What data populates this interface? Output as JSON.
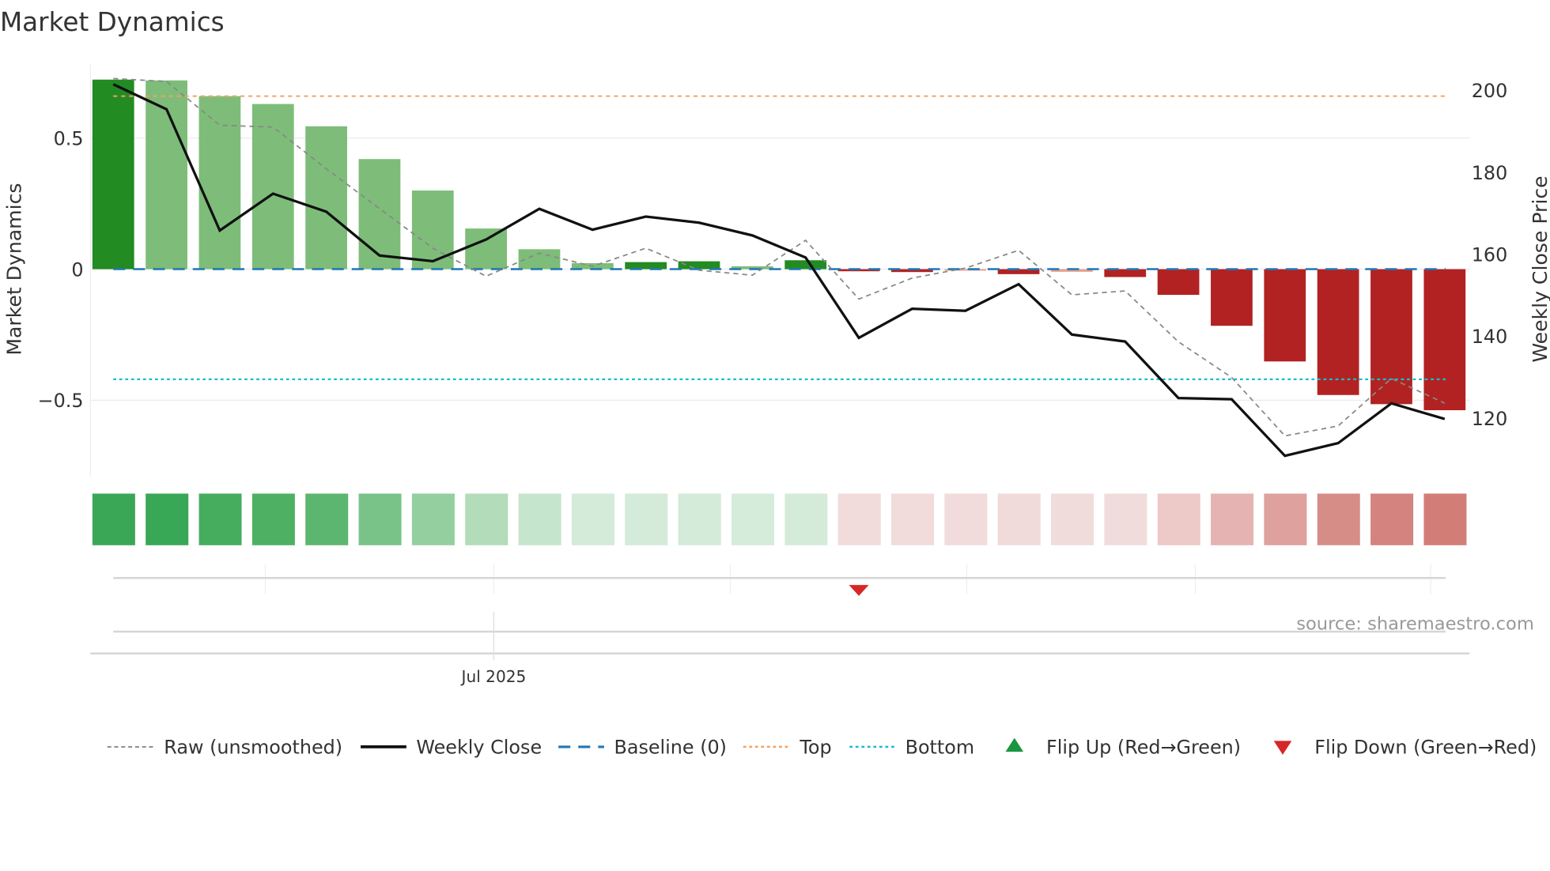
{
  "chart_data": {
    "type": "bar",
    "title": "Market Dynamics",
    "ylabel": "Market Dynamics",
    "y2label": "Weekly Close Price",
    "ylim": [
      -0.78,
      0.78
    ],
    "y2lim": [
      108,
      206
    ],
    "yticks": [
      {
        "v": 0.5,
        "label": "0.5"
      },
      {
        "v": 0,
        "label": "0"
      },
      {
        "v": -0.5,
        "label": "−0.5"
      }
    ],
    "y2ticks": [
      {
        "v": 200,
        "label": "200"
      },
      {
        "v": 180,
        "label": "180"
      },
      {
        "v": 160,
        "label": "160"
      },
      {
        "v": 140,
        "label": "140"
      },
      {
        "v": 120,
        "label": "120"
      }
    ],
    "n_weeks": 26,
    "bars": [
      0.723,
      0.72,
      0.66,
      0.63,
      0.545,
      0.42,
      0.3,
      0.155,
      0.076,
      0.023,
      0.027,
      0.03,
      0.011,
      0.034,
      -0.008,
      -0.011,
      -0.004,
      -0.019,
      -0.01,
      -0.03,
      -0.098,
      -0.216,
      -0.352,
      -0.48,
      -0.515,
      -0.538
    ],
    "bar_colors": [
      "#228b22",
      "#7dbd79",
      "#7dbd79",
      "#7dbd79",
      "#7dbd79",
      "#7dbd79",
      "#7dbd79",
      "#7dbd79",
      "#7dbd79",
      "#7dbd79",
      "#228b22",
      "#228b22",
      "#7dbd79",
      "#228b22",
      "#b22222",
      "#b22222",
      "#e8a08c",
      "#b22222",
      "#e8a08c",
      "#b22222",
      "#b22222",
      "#b22222",
      "#b22222",
      "#b22222",
      "#b22222",
      "#b22222"
    ],
    "raw": [
      0.727,
      0.716,
      0.549,
      0.542,
      0.383,
      0.231,
      0.08,
      -0.027,
      0.061,
      0.011,
      0.08,
      -0.004,
      -0.023,
      0.11,
      -0.114,
      -0.034,
      0.004,
      0.072,
      -0.098,
      -0.083,
      -0.277,
      -0.413,
      -0.636,
      -0.598,
      -0.417,
      -0.511
    ],
    "weekly_close": [
      201.5,
      195.4,
      165.8,
      174.8,
      170.4,
      159.7,
      158.3,
      163.6,
      171.1,
      166,
      169.2,
      167.7,
      164.6,
      159.2,
      139.6,
      146.7,
      146.2,
      152.7,
      140.4,
      138.7,
      124.9,
      124.6,
      110.8,
      113.9,
      123.6,
      119.8
    ],
    "baseline": 0,
    "top": 0.66,
    "bottom": -0.42,
    "heat_colors": [
      "#3aa757",
      "#38a856",
      "#46ad5f",
      "#4db063",
      "#5db66f",
      "#79c388",
      "#93cf9f",
      "#b2dcba",
      "#c5e5cc",
      "#d3ebd8",
      "#d3ebd8",
      "#d3ebd8",
      "#d5ecda",
      "#d3ebd8",
      "#f1dbdb",
      "#f1dbdb",
      "#f1dbdb",
      "#f0dada",
      "#f1dcdc",
      "#f1dcdc",
      "#edc9c8",
      "#e5b3b1",
      "#dea19d",
      "#d68d88",
      "#d4837e",
      "#d27e77"
    ],
    "flip_down_weeks": [
      14
    ],
    "flip_up_weeks": [],
    "xtick_label": "Jul 2025",
    "xtick_week": 7.3,
    "colors": {
      "up": "#1a9641",
      "down": "#d62728",
      "raw": "#888888",
      "close": "#111111",
      "baseline": "#1f77b4",
      "top": "#f4a261",
      "bottom": "#17becf"
    },
    "legend": [
      {
        "key": "raw",
        "label": "Raw (unsmoothed)"
      },
      {
        "key": "close",
        "label": "Weekly Close"
      },
      {
        "key": "baseline",
        "label": "Baseline (0)"
      },
      {
        "key": "top",
        "label": "Top"
      },
      {
        "key": "bottom",
        "label": "Bottom"
      },
      {
        "key": "flipup",
        "label": "Flip Up (Red→Green)"
      },
      {
        "key": "flipdown",
        "label": "Flip Down (Green→Red)"
      }
    ],
    "legend_position": "bottom",
    "source": "source: sharemaestro.com"
  }
}
